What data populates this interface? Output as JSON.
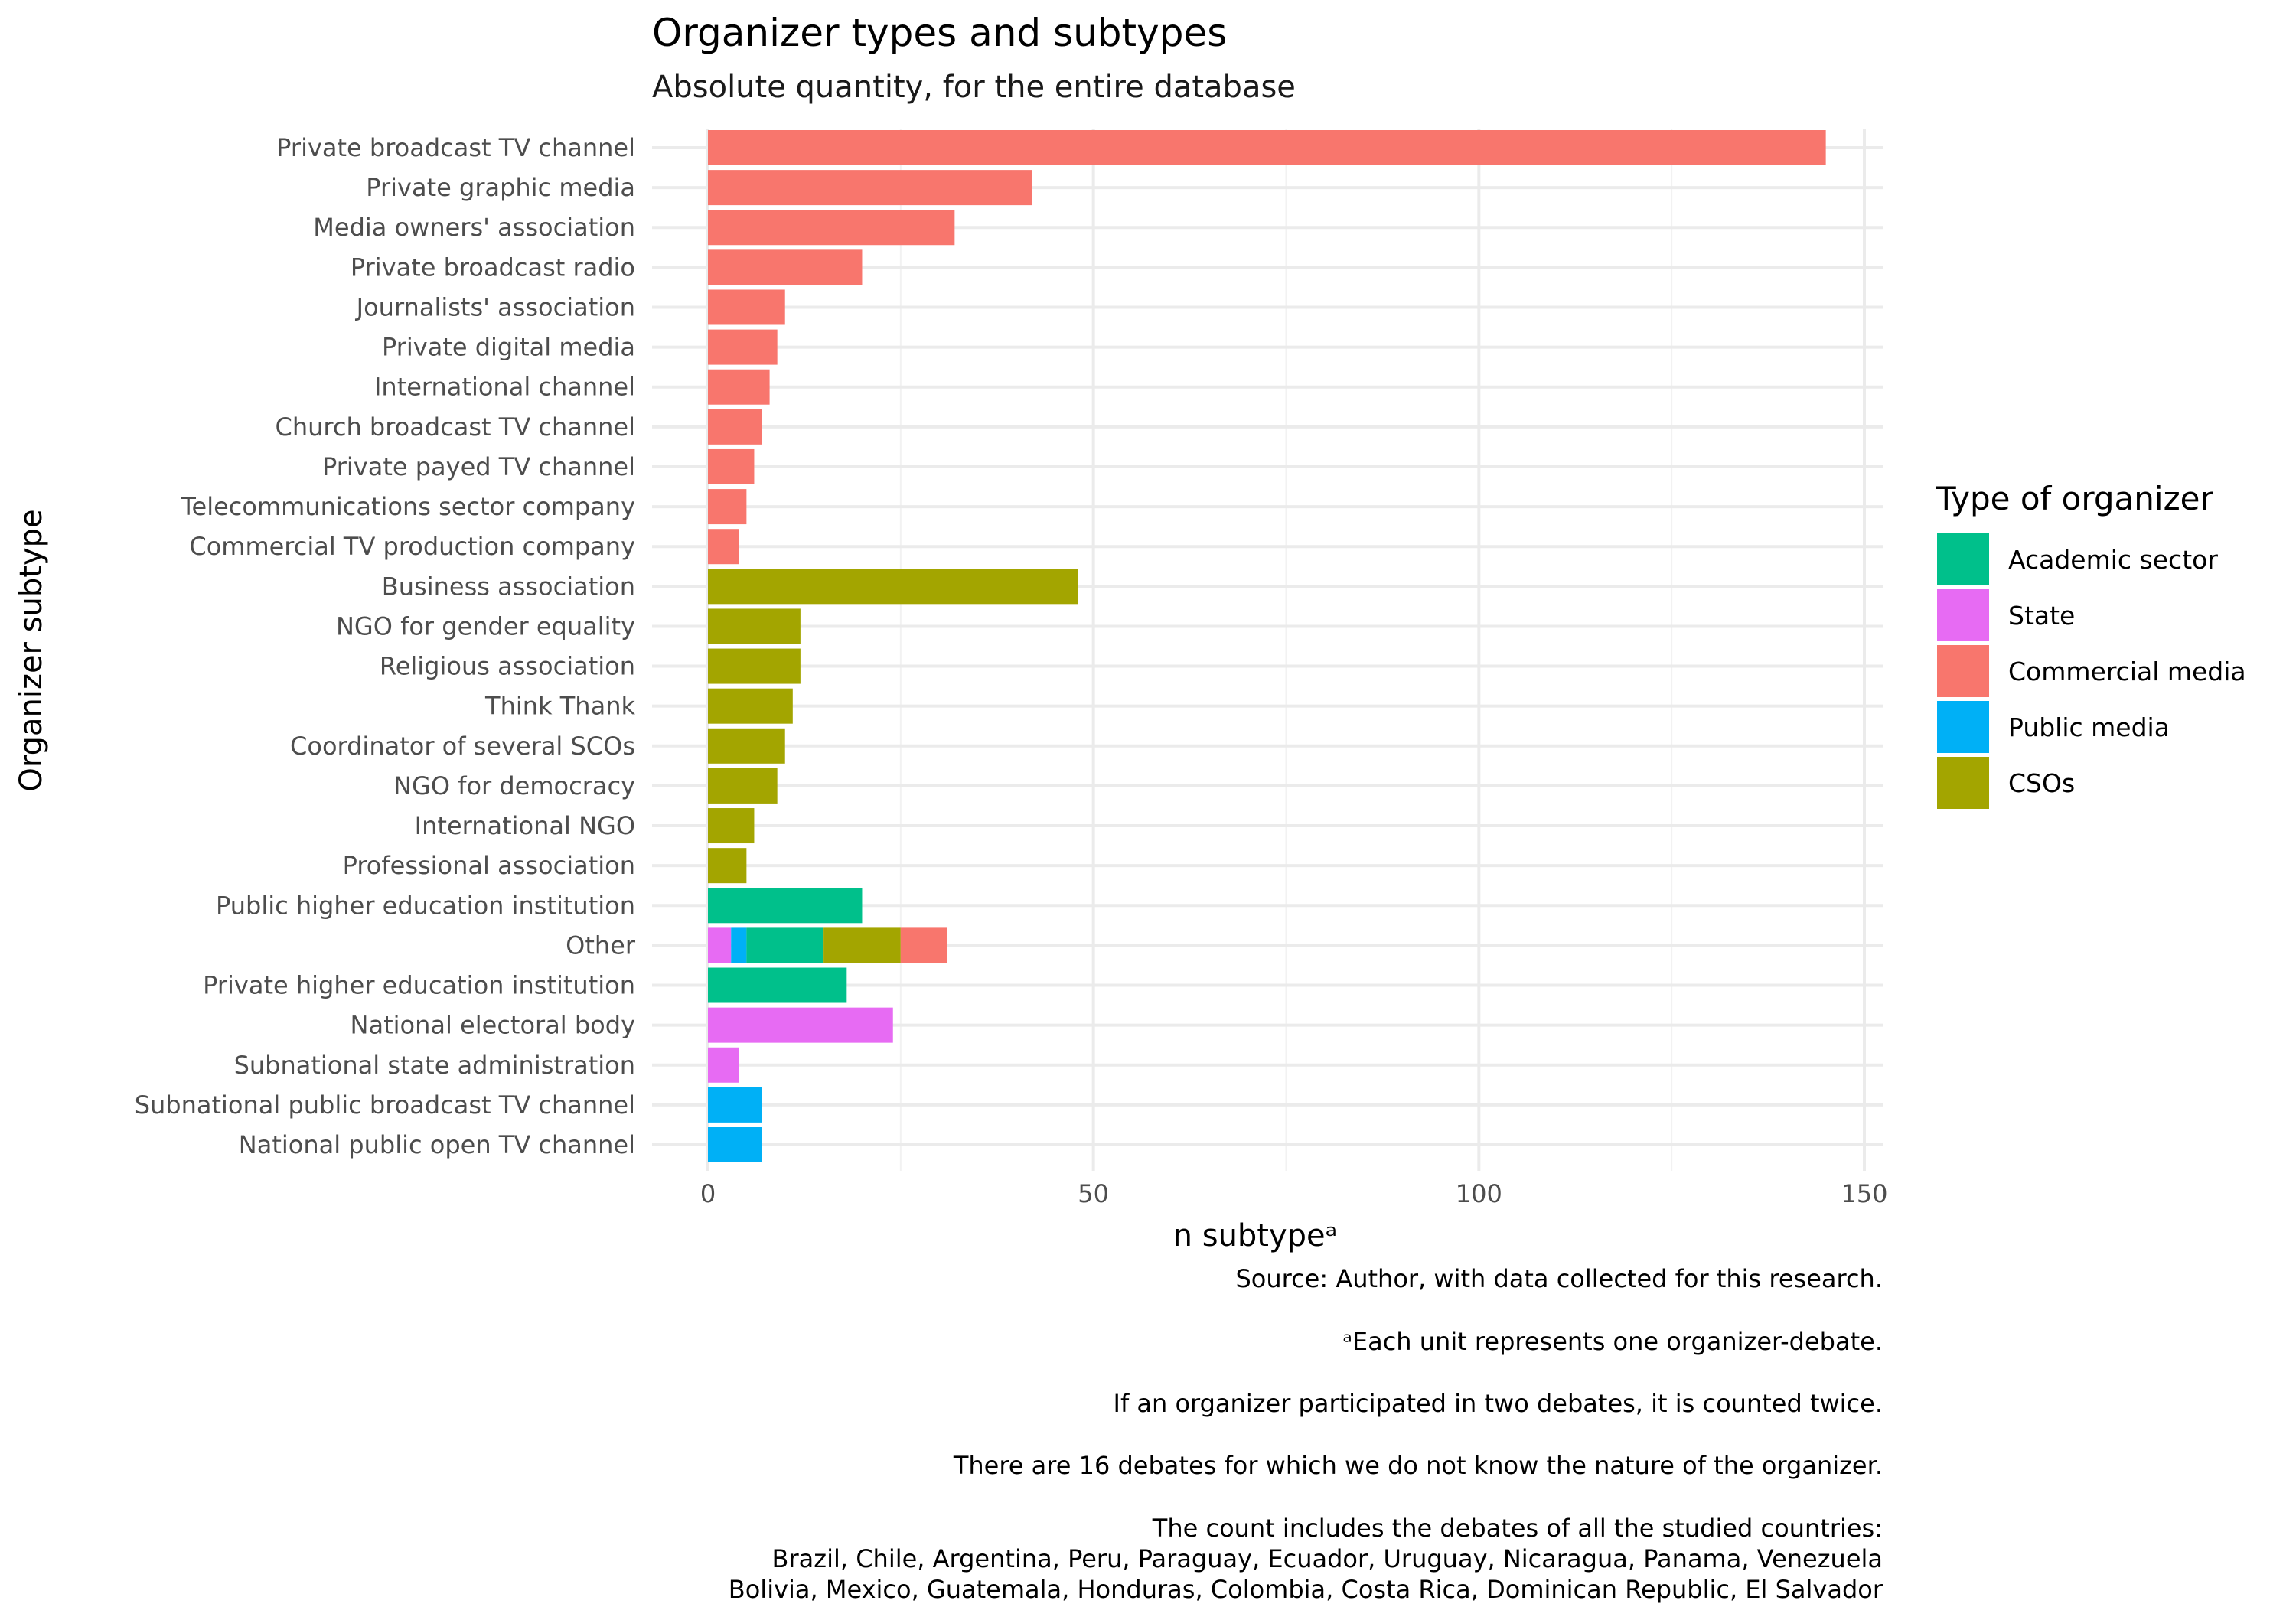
{
  "chart_data": {
    "type": "bar",
    "orientation": "horizontal",
    "stacked": true,
    "title": "Organizer types and subtypes",
    "subtitle": "Absolute quantity, for the entire database",
    "xlabel": "n subtypeᵃ",
    "ylabel": "Organizer subtype",
    "xlim": [
      -7,
      152
    ],
    "xticks": [
      0,
      50,
      100,
      150
    ],
    "grid": true,
    "legend": {
      "title": "Type of organizer",
      "placement": "right",
      "entries": [
        {
          "name": "Academic sector",
          "color": "#00C08B"
        },
        {
          "name": "State",
          "color": "#E76BF3"
        },
        {
          "name": "Commercial media",
          "color": "#F8766D"
        },
        {
          "name": "Public media",
          "color": "#00B0F6"
        },
        {
          "name": "CSOs",
          "color": "#A3A500"
        }
      ]
    },
    "categories": [
      "Private broadcast TV channel",
      "Private graphic media",
      "Media owners' association",
      "Private broadcast radio",
      "Journalists' association",
      "Private digital media",
      "International channel",
      "Church broadcast TV channel",
      "Private payed TV channel",
      "Telecommunications sector company",
      "Commercial TV production company",
      "Business association",
      "NGO for gender equality",
      "Religious association",
      "Think Thank",
      "Coordinator of several SCOs",
      "NGO for democracy",
      "International NGO",
      "Professional association",
      "Public higher education institution",
      "Other",
      "Private higher education institution",
      "National electoral body",
      "Subnational state administration",
      "Subnational public broadcast TV channel",
      "National public open TV channel"
    ],
    "bars": [
      {
        "category": "Private broadcast TV channel",
        "segments": [
          {
            "type": "Commercial media",
            "value": 145
          }
        ]
      },
      {
        "category": "Private graphic media",
        "segments": [
          {
            "type": "Commercial media",
            "value": 42
          }
        ]
      },
      {
        "category": "Media owners' association",
        "segments": [
          {
            "type": "Commercial media",
            "value": 32
          }
        ]
      },
      {
        "category": "Private broadcast radio",
        "segments": [
          {
            "type": "Commercial media",
            "value": 20
          }
        ]
      },
      {
        "category": "Journalists' association",
        "segments": [
          {
            "type": "Commercial media",
            "value": 10
          }
        ]
      },
      {
        "category": "Private digital media",
        "segments": [
          {
            "type": "Commercial media",
            "value": 9
          }
        ]
      },
      {
        "category": "International channel",
        "segments": [
          {
            "type": "Commercial media",
            "value": 8
          }
        ]
      },
      {
        "category": "Church broadcast TV channel",
        "segments": [
          {
            "type": "Commercial media",
            "value": 7
          }
        ]
      },
      {
        "category": "Private payed TV channel",
        "segments": [
          {
            "type": "Commercial media",
            "value": 6
          }
        ]
      },
      {
        "category": "Telecommunications sector company",
        "segments": [
          {
            "type": "Commercial media",
            "value": 5
          }
        ]
      },
      {
        "category": "Commercial TV production company",
        "segments": [
          {
            "type": "Commercial media",
            "value": 4
          }
        ]
      },
      {
        "category": "Business association",
        "segments": [
          {
            "type": "CSOs",
            "value": 48
          }
        ]
      },
      {
        "category": "NGO for gender equality",
        "segments": [
          {
            "type": "CSOs",
            "value": 12
          }
        ]
      },
      {
        "category": "Religious association",
        "segments": [
          {
            "type": "CSOs",
            "value": 12
          }
        ]
      },
      {
        "category": "Think Thank",
        "segments": [
          {
            "type": "CSOs",
            "value": 11
          }
        ]
      },
      {
        "category": "Coordinator of several SCOs",
        "segments": [
          {
            "type": "CSOs",
            "value": 10
          }
        ]
      },
      {
        "category": "NGO for democracy",
        "segments": [
          {
            "type": "CSOs",
            "value": 9
          }
        ]
      },
      {
        "category": "International NGO",
        "segments": [
          {
            "type": "CSOs",
            "value": 6
          }
        ]
      },
      {
        "category": "Professional association",
        "segments": [
          {
            "type": "CSOs",
            "value": 5
          }
        ]
      },
      {
        "category": "Public higher education institution",
        "segments": [
          {
            "type": "Academic sector",
            "value": 20
          }
        ]
      },
      {
        "category": "Other",
        "segments": [
          {
            "type": "State",
            "value": 3
          },
          {
            "type": "Public media",
            "value": 2
          },
          {
            "type": "Academic sector",
            "value": 10
          },
          {
            "type": "CSOs",
            "value": 10
          },
          {
            "type": "Commercial media",
            "value": 6
          }
        ]
      },
      {
        "category": "Private higher education institution",
        "segments": [
          {
            "type": "Academic sector",
            "value": 18
          }
        ]
      },
      {
        "category": "National electoral body",
        "segments": [
          {
            "type": "State",
            "value": 24
          }
        ]
      },
      {
        "category": "Subnational state administration",
        "segments": [
          {
            "type": "State",
            "value": 4
          }
        ]
      },
      {
        "category": "Subnational public broadcast TV channel",
        "segments": [
          {
            "type": "Public media",
            "value": 7
          }
        ]
      },
      {
        "category": "National public open TV channel",
        "segments": [
          {
            "type": "Public media",
            "value": 7
          }
        ]
      }
    ],
    "caption": [
      "Source: Author, with data collected for this research.",
      "ᵃEach unit represents one organizer-debate.",
      "If an organizer participated in two debates, it is counted twice.",
      "There are 16 debates for which we do not know the nature of the organizer.",
      "The count includes the debates of all the studied countries:",
      "Brazil, Chile, Argentina, Peru, Paraguay, Ecuador, Uruguay, Nicaragua, Panama, Venezuela",
      "Bolivia, Mexico, Guatemala, Honduras, Colombia, Costa Rica, Dominican Republic, El Salvador"
    ]
  }
}
